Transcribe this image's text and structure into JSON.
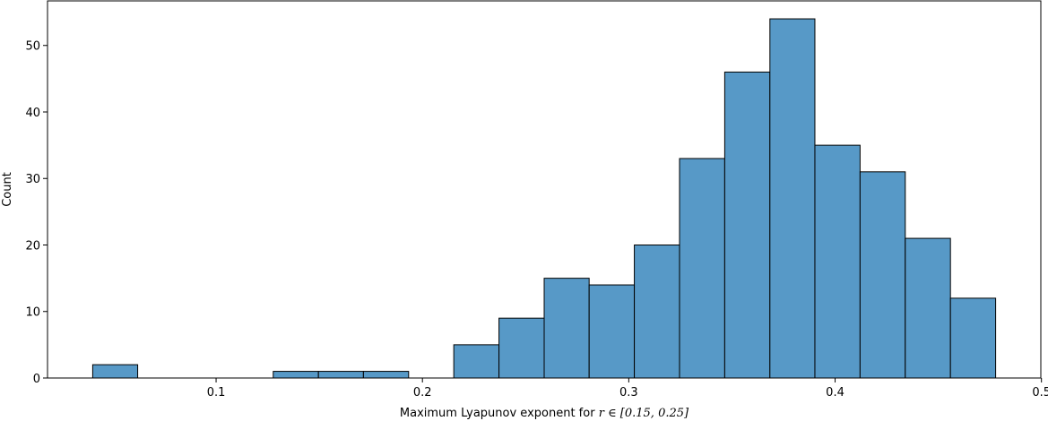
{
  "chart_data": {
    "type": "bar",
    "subtype": "histogram",
    "bins": [
      {
        "x0": 0.0402,
        "x1": 0.062,
        "count": 2
      },
      {
        "x0": 0.062,
        "x1": 0.0839,
        "count": 0
      },
      {
        "x0": 0.0839,
        "x1": 0.1058,
        "count": 0
      },
      {
        "x0": 0.1058,
        "x1": 0.1277,
        "count": 0
      },
      {
        "x0": 0.1277,
        "x1": 0.1496,
        "count": 1
      },
      {
        "x0": 0.1496,
        "x1": 0.1714,
        "count": 1
      },
      {
        "x0": 0.1714,
        "x1": 0.1933,
        "count": 1
      },
      {
        "x0": 0.1933,
        "x1": 0.2152,
        "count": 0
      },
      {
        "x0": 0.2152,
        "x1": 0.2371,
        "count": 5
      },
      {
        "x0": 0.2371,
        "x1": 0.259,
        "count": 9
      },
      {
        "x0": 0.259,
        "x1": 0.2808,
        "count": 15
      },
      {
        "x0": 0.2808,
        "x1": 0.3027,
        "count": 14
      },
      {
        "x0": 0.3027,
        "x1": 0.3246,
        "count": 20
      },
      {
        "x0": 0.3246,
        "x1": 0.3465,
        "count": 33
      },
      {
        "x0": 0.3465,
        "x1": 0.3684,
        "count": 46
      },
      {
        "x0": 0.3684,
        "x1": 0.3902,
        "count": 54
      },
      {
        "x0": 0.3902,
        "x1": 0.4121,
        "count": 35
      },
      {
        "x0": 0.4121,
        "x1": 0.434,
        "count": 31
      },
      {
        "x0": 0.434,
        "x1": 0.4559,
        "count": 21
      },
      {
        "x0": 0.4559,
        "x1": 0.4778,
        "count": 12
      }
    ],
    "xlabel_prefix": "Maximum Lyapunov exponent for ",
    "xlabel_math": "r ∈ [0.15, 0.25]",
    "ylabel": "Count",
    "xlim": [
      0.0183,
      0.4997
    ],
    "ylim": [
      0,
      56.7
    ],
    "xticks": [
      {
        "value": 0.1,
        "label": "0.1"
      },
      {
        "value": 0.2,
        "label": "0.2"
      },
      {
        "value": 0.3,
        "label": "0.3"
      },
      {
        "value": 0.4,
        "label": "0.4"
      },
      {
        "value": 0.5,
        "label": "0.5"
      }
    ],
    "yticks": [
      {
        "value": 0,
        "label": "0"
      },
      {
        "value": 10,
        "label": "10"
      },
      {
        "value": 20,
        "label": "20"
      },
      {
        "value": 30,
        "label": "30"
      },
      {
        "value": 40,
        "label": "40"
      },
      {
        "value": 50,
        "label": "50"
      }
    ],
    "bar_color": "#5799c7",
    "edge_color": "#000000",
    "grid": false,
    "legend": false
  }
}
